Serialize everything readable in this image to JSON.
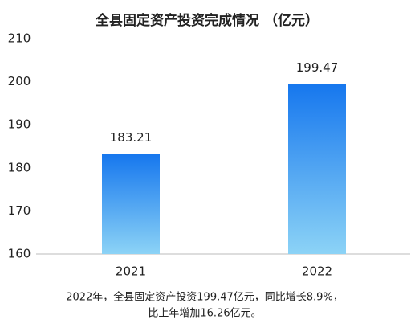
{
  "chart_data": {
    "type": "bar",
    "title": "全县固定资产投资完成情况 （亿元）",
    "categories": [
      "2021",
      "2022"
    ],
    "values": [
      183.21,
      199.47
    ],
    "gradient": {
      "top": "#1677ee",
      "bottom": "#8cd3f6"
    },
    "ylim": [
      160,
      210
    ],
    "yticks": [
      160,
      170,
      180,
      190,
      200,
      210
    ],
    "grid": false,
    "annotation": [
      "2022年，全县固定资产投资199.47亿元，同比增长8.9%，",
      "比上年增加16.26亿元。"
    ]
  }
}
